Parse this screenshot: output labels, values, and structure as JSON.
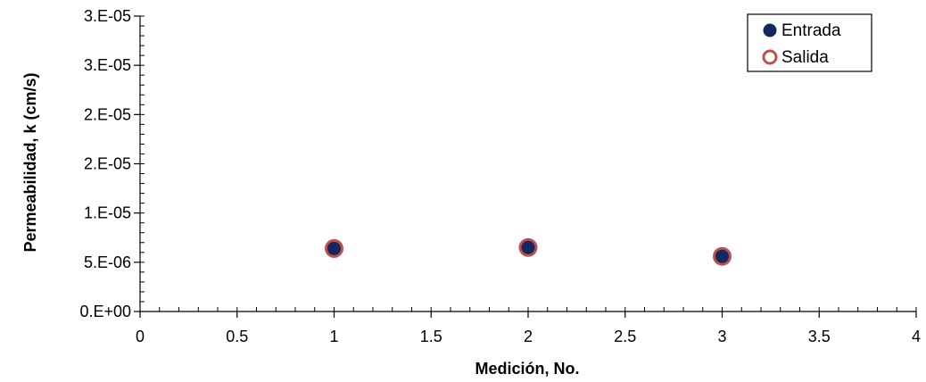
{
  "chart_data": {
    "type": "scatter",
    "title": "",
    "xlabel": "Medición, No.",
    "ylabel": "Permeabilidad, k (cm/s)",
    "xlim": [
      0,
      4
    ],
    "ylim": [
      0,
      3e-05
    ],
    "x_ticks": [
      0,
      0.5,
      1,
      1.5,
      2,
      2.5,
      3,
      3.5,
      4
    ],
    "x_tick_labels": [
      "0",
      "0.5",
      "1",
      "1.5",
      "2",
      "2.5",
      "3",
      "3.5",
      "4"
    ],
    "y_ticks": [
      0,
      5e-06,
      1e-05,
      1.5e-05,
      2e-05,
      2.5e-05,
      3e-05
    ],
    "y_tick_labels": [
      "0.E+00",
      "5.E-06",
      "1.E-05",
      "2.E-05",
      "2.E-05",
      "3.E-05",
      "3.E-05"
    ],
    "grid": false,
    "legend_position": "top-right",
    "series": [
      {
        "name": "Entrada",
        "x": [
          1,
          2,
          3
        ],
        "y": [
          6.4e-06,
          6.5e-06,
          5.6e-06
        ],
        "marker": "filled-circle",
        "color": "#14275e"
      },
      {
        "name": "Salida",
        "x": [
          1,
          2,
          3
        ],
        "y": [
          6.4e-06,
          6.5e-06,
          5.6e-06
        ],
        "marker": "open-circle",
        "color": "#c0504d"
      }
    ]
  }
}
